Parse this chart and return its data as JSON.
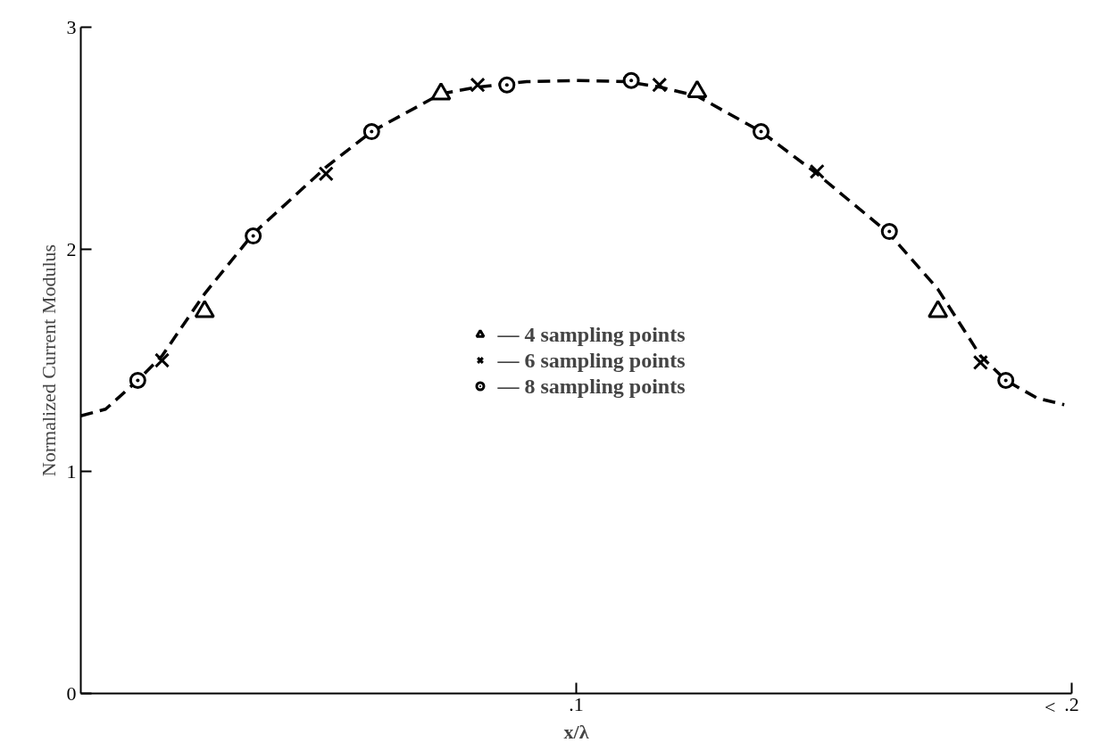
{
  "chart_data": {
    "type": "scatter",
    "xlabel": "x/λ",
    "ylabel": "Normalized Current Modulus",
    "xlim": [
      0,
      0.2
    ],
    "ylim": [
      0,
      3
    ],
    "xticks": [
      {
        "value": 0.1,
        "label": ".1"
      },
      {
        "value": 0.2,
        "label": ".2"
      }
    ],
    "annotations": [
      "<"
    ],
    "yticks": [
      0,
      1,
      2,
      3
    ],
    "grid": false,
    "legend": "center",
    "series": [
      {
        "type": "line",
        "line_style": "dashed",
        "marker": "none",
        "color": "#000000",
        "x": [
          0,
          0.005,
          0.0115,
          0.0164,
          0.025,
          0.0348,
          0.0495,
          0.0587,
          0.0727,
          0.08,
          0.09,
          0.1,
          0.11,
          0.117,
          0.1244,
          0.1373,
          0.1486,
          0.1632,
          0.173,
          0.1816,
          0.1867,
          0.193,
          0.1985
        ],
        "values": [
          1.25,
          1.28,
          1.41,
          1.52,
          1.8,
          2.07,
          2.37,
          2.53,
          2.7,
          2.73,
          2.755,
          2.76,
          2.755,
          2.73,
          2.69,
          2.53,
          2.34,
          2.07,
          1.82,
          1.52,
          1.41,
          1.33,
          1.3
        ]
      },
      {
        "name": "— 4 sampling points",
        "marker": "triangle",
        "color": "#000000",
        "x": [
          0.025,
          0.0727,
          0.1244,
          0.173
        ],
        "values": [
          1.72,
          2.7,
          2.71,
          1.72
        ]
      },
      {
        "name": "— 6 sampling points",
        "marker": "cross",
        "color": "#000000",
        "x": [
          0.0164,
          0.0495,
          0.0801,
          0.1168,
          0.1486,
          0.1816
        ],
        "values": [
          1.5,
          2.34,
          2.74,
          2.74,
          2.35,
          1.49
        ]
      },
      {
        "name": "— 8 sampling points",
        "marker": "circle",
        "color": "#000000",
        "x": [
          0.0115,
          0.0348,
          0.0587,
          0.086,
          0.1111,
          0.1373,
          0.1632,
          0.1867
        ],
        "values": [
          1.41,
          2.06,
          2.53,
          2.74,
          2.76,
          2.53,
          2.08,
          1.41
        ]
      }
    ]
  }
}
